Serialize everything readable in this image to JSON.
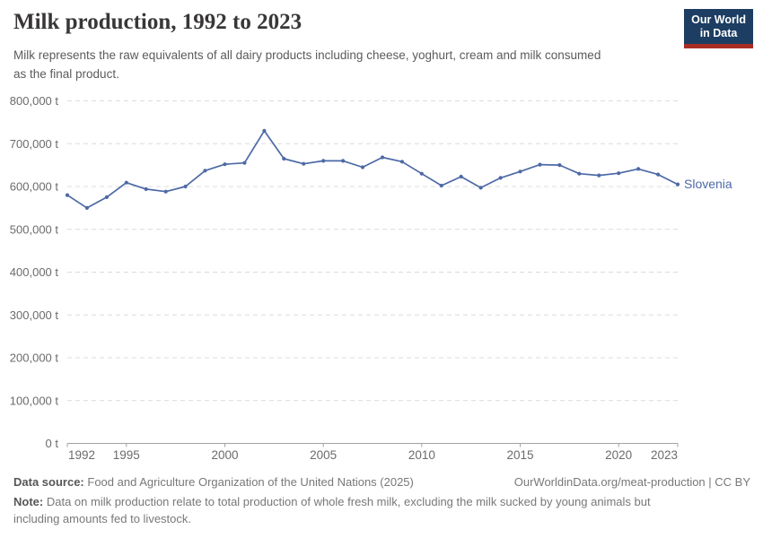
{
  "header": {
    "title": "Milk production, 1992 to 2023",
    "subtitle_line1": "Milk represents the raw equivalents of all dairy products including cheese, yoghurt, cream and milk consumed",
    "subtitle_line2": "as the final product."
  },
  "logo": {
    "line1": "Our World",
    "line2": "in Data"
  },
  "chart_data": {
    "type": "line",
    "title": "Milk production, 1992 to 2023",
    "unit": "t",
    "x": [
      1992,
      1993,
      1994,
      1995,
      1996,
      1997,
      1998,
      1999,
      2000,
      2001,
      2002,
      2003,
      2004,
      2005,
      2006,
      2007,
      2008,
      2009,
      2010,
      2011,
      2012,
      2013,
      2014,
      2015,
      2016,
      2017,
      2018,
      2019,
      2020,
      2021,
      2022,
      2023
    ],
    "series": [
      {
        "name": "Slovenia",
        "values": [
          580000,
          550000,
          575000,
          609000,
          594000,
          588000,
          600000,
          637000,
          652000,
          655000,
          730000,
          665000,
          653000,
          660000,
          660000,
          645000,
          668000,
          658000,
          630000,
          602000,
          623000,
          597000,
          620000,
          635000,
          651000,
          650000,
          630000,
          626000,
          631000,
          641000,
          628000,
          605000
        ]
      }
    ],
    "ylim": [
      0,
      800000
    ],
    "yticks": [
      {
        "value": 0,
        "label": "0 t"
      },
      {
        "value": 100000,
        "label": "100,000 t"
      },
      {
        "value": 200000,
        "label": "200,000 t"
      },
      {
        "value": 300000,
        "label": "300,000 t"
      },
      {
        "value": 400000,
        "label": "400,000 t"
      },
      {
        "value": 500000,
        "label": "500,000 t"
      },
      {
        "value": 600000,
        "label": "600,000 t"
      },
      {
        "value": 700000,
        "label": "700,000 t"
      },
      {
        "value": 800000,
        "label": "800,000 t"
      }
    ],
    "xticks": [
      1992,
      1995,
      2000,
      2005,
      2010,
      2015,
      2020,
      2023
    ],
    "grid": "dashed-horizontal",
    "legend": "end-of-line-label"
  },
  "colors": {
    "line": "#4d69a6",
    "grid": "#dcdcdc",
    "axis": "#a3a3a3",
    "tick_text": "#6b6b6b",
    "logo_bg": "#1d3d63",
    "logo_stripe": "#a92c23"
  },
  "footer": {
    "source_label": "Data source:",
    "source_text": "Food and Agriculture Organization of the United Nations (2025)",
    "attribution": "OurWorldinData.org/meat-production | CC BY",
    "note_label": "Note:",
    "note_text": "Data on milk production relate to total production of whole fresh milk, excluding the milk sucked by young animals but including amounts fed to livestock."
  }
}
